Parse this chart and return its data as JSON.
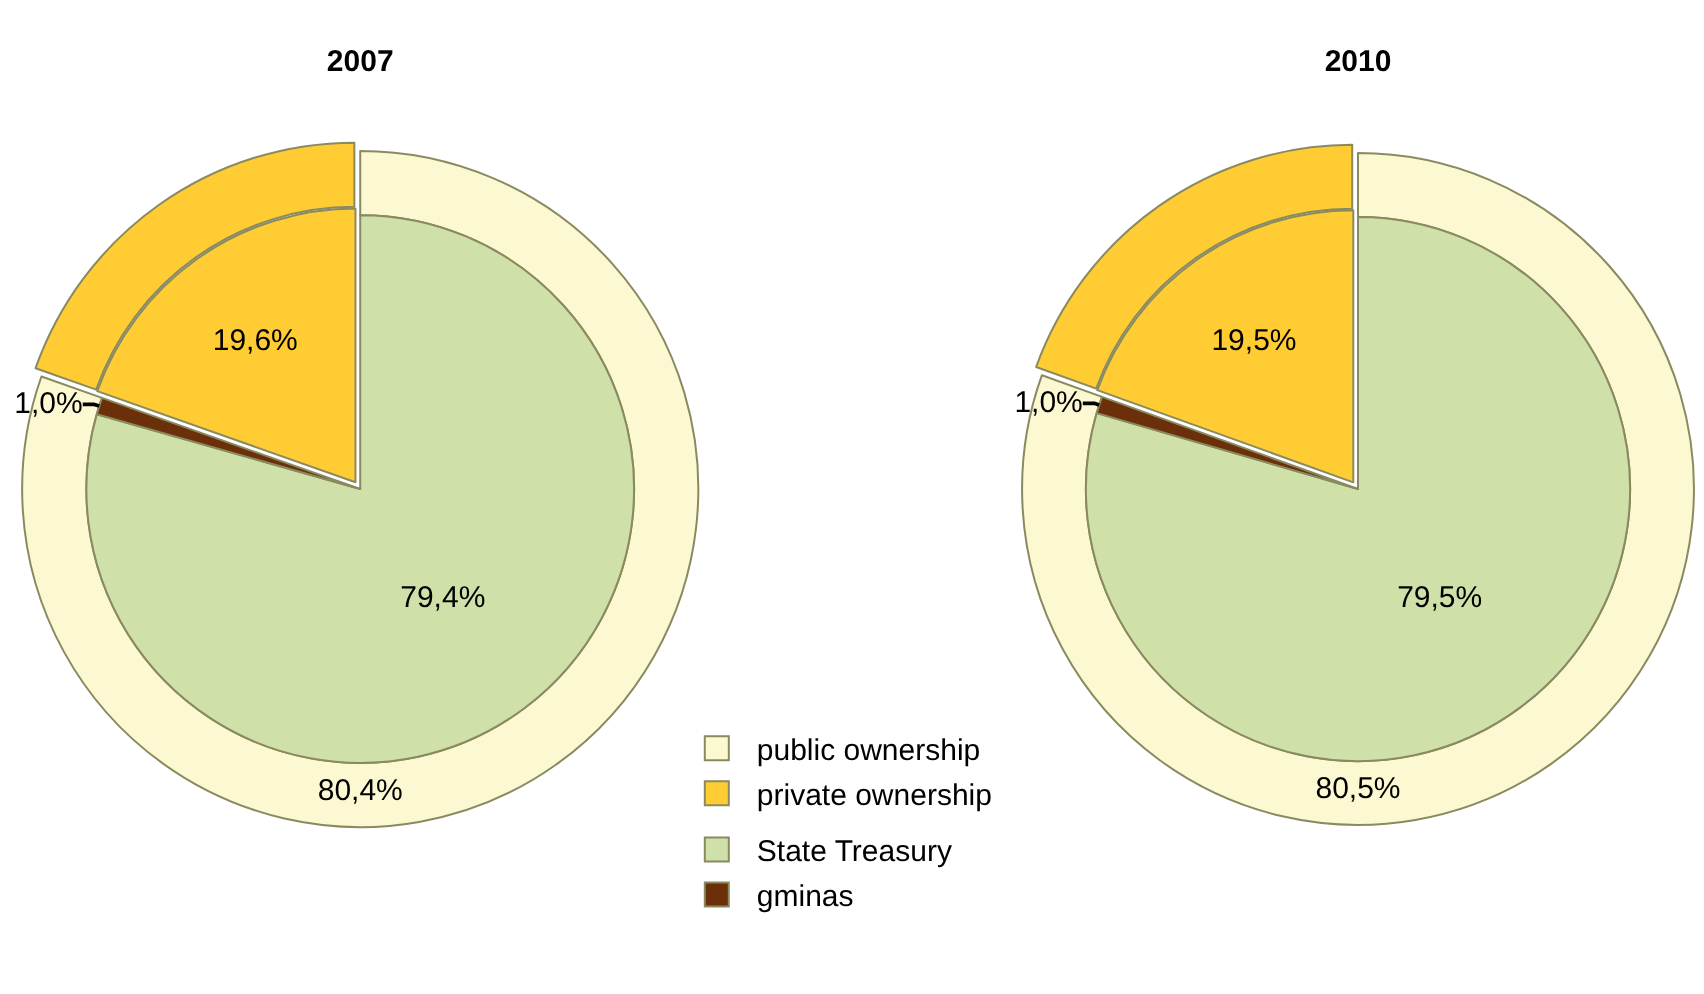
{
  "chart_data": [
    {
      "type": "donut",
      "title": "2007",
      "legend": "bottom",
      "categories": [
        "public ownership",
        "private ownership"
      ],
      "values": [
        80.4,
        19.6
      ],
      "colors": [
        "#fcf9d2",
        "#ffcc33"
      ],
      "value_labels": [
        "80,4%",
        null
      ]
    },
    {
      "type": "pie",
      "legend": "bottom",
      "categories": [
        "State Treasury",
        "gminas",
        null
      ],
      "values": [
        79.4,
        1.0,
        19.6
      ],
      "colors": [
        "#cfe0a8",
        "#6b2f0a",
        "#ffcc33"
      ],
      "value_labels": [
        "79,4%",
        "1,0%",
        "19,6%"
      ]
    },
    {
      "type": "donut",
      "title": "2010",
      "categories": [
        null,
        null
      ],
      "values": [
        80.5,
        19.5
      ],
      "colors": [
        "#fcf9d2",
        "#ffcc33"
      ],
      "value_labels": [
        "80,5%",
        null
      ]
    },
    {
      "type": "pie",
      "categories": [
        null,
        null,
        null
      ],
      "values": [
        79.5,
        1.0,
        19.5
      ],
      "colors": [
        "#cfe0a8",
        "#6b2f0a",
        "#ffcc33"
      ],
      "value_labels": [
        "79,5%",
        "1,0%",
        "19,5%"
      ]
    }
  ]
}
